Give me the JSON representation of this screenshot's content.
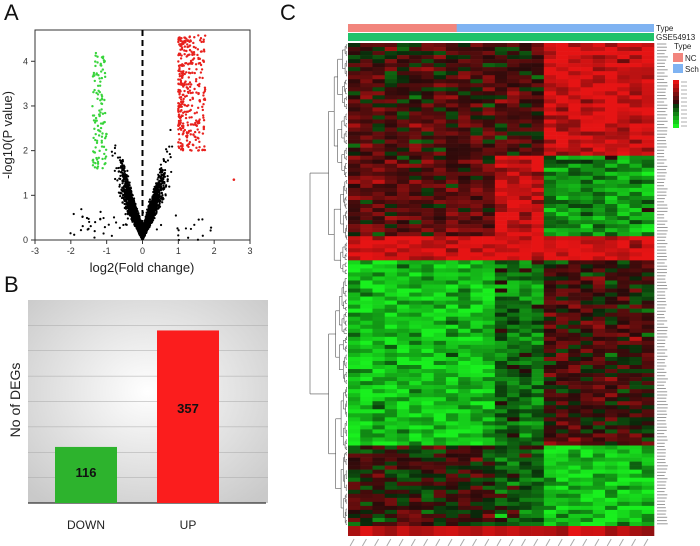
{
  "panels": {
    "a_label": "A",
    "b_label": "B",
    "c_label": "C"
  },
  "chart_data": [
    {
      "type": "scatter",
      "panel": "A",
      "title": "",
      "xlabel": "log2(Fold change)",
      "ylabel": "-log10(P value)",
      "xlim": [
        -3,
        3
      ],
      "ylim": [
        0,
        4.7
      ],
      "xticks": [
        "-3",
        "-2",
        "-1",
        "0",
        "1",
        "2",
        "3"
      ],
      "yticks": [
        "0",
        "1",
        "2",
        "3",
        "4"
      ],
      "cutoff_line_x": 0,
      "colors": {
        "up": "#e8211d",
        "down": "#39d43c",
        "ns": "#000000"
      },
      "series": [
        {
          "group": "down",
          "approx_x_range": [
            -1.4,
            -1.0
          ],
          "approx_y_range": [
            1.6,
            4.2
          ]
        },
        {
          "group": "up",
          "approx_x_range": [
            1.0,
            1.75
          ],
          "approx_y_range": [
            2.0,
            4.6
          ]
        },
        {
          "group": "ns",
          "approx_x_range": [
            -2.1,
            2.5
          ],
          "approx_y_range": [
            0,
            3.5
          ]
        }
      ]
    },
    {
      "type": "bar",
      "panel": "B",
      "title": "",
      "xlabel": "",
      "ylabel": "No of DEGs",
      "categories": [
        "DOWN",
        "UP"
      ],
      "values": [
        116,
        357
      ],
      "data_labels": [
        "116",
        "357"
      ],
      "colors": [
        "#2db32d",
        "#fb1d1d"
      ],
      "ylim": [
        0,
        420
      ]
    },
    {
      "type": "heatmap",
      "panel": "C",
      "title": "",
      "annotation_rows": [
        "Type",
        "GSE54913"
      ],
      "legend_title": "Type",
      "legend_items": [
        {
          "label": "NC",
          "color": "#f2857d"
        },
        {
          "label": "Sch",
          "color": "#7fb3f2"
        }
      ],
      "annotation_colors": {
        "NC": "#f2857d",
        "Sch": "#7fb3f2",
        "GSE54913": "#1fc26b"
      },
      "color_scale": {
        "low": "#1fe01f",
        "mid": "#000000",
        "high": "#e01f1f"
      },
      "samples": {
        "NC": 12,
        "Sch": 13
      }
    }
  ]
}
